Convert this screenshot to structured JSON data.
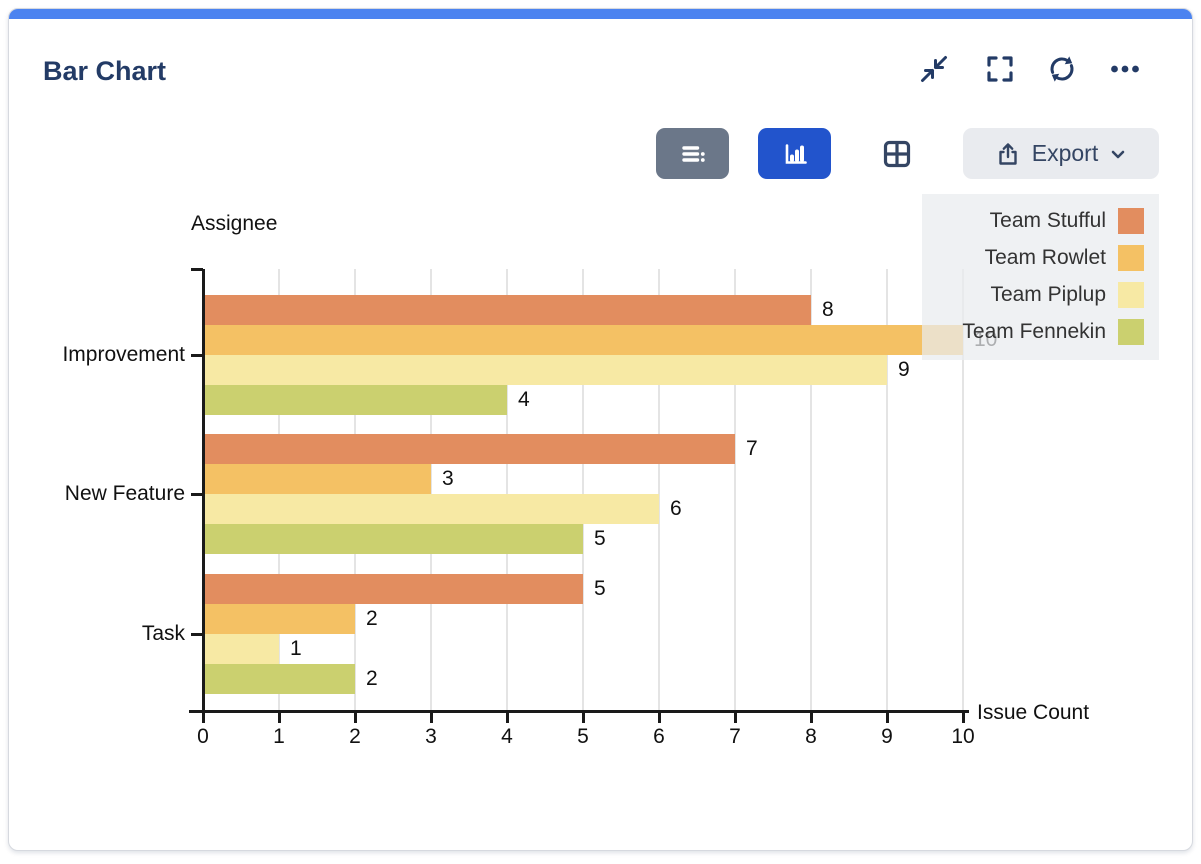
{
  "header": {
    "title": "Bar Chart",
    "icons": [
      "shrink-icon",
      "fullscreen-icon",
      "refresh-icon",
      "ellipsis-icon"
    ]
  },
  "toolbar": {
    "views": [
      {
        "name": "list-view",
        "active": false
      },
      {
        "name": "chart-view",
        "active": true
      },
      {
        "name": "table-view",
        "active": false
      }
    ],
    "export": {
      "label": "Export"
    }
  },
  "colors": {
    "accent_bar": "#4B83F0",
    "active_view_button": "#2254CC",
    "inactive_view_button": "#6B7789",
    "header_text": "#233B66",
    "export_button_bg": "#E9EBEF",
    "legend_background": "rgba(233,235,238,0.72)",
    "gridline": "#E4E4E4"
  },
  "chart_data": {
    "type": "bar",
    "orientation": "horizontal",
    "title": "",
    "xlabel": "Issue Count",
    "ylabel": "Assignee",
    "categories": [
      "Improvement",
      "New Feature",
      "Task"
    ],
    "series": [
      {
        "name": "Team Stufful",
        "color": "#E28D5F",
        "values": [
          8,
          7,
          5
        ]
      },
      {
        "name": "Team Rowlet",
        "color": "#F4C164",
        "values": [
          10,
          3,
          2
        ]
      },
      {
        "name": "Team Piplup",
        "color": "#F7E9A4",
        "values": [
          9,
          6,
          1
        ]
      },
      {
        "name": "Team Fennekin",
        "color": "#CBD06F",
        "values": [
          4,
          5,
          2
        ]
      }
    ],
    "xlim": [
      0,
      10
    ],
    "xticks": [
      0,
      1,
      2,
      3,
      4,
      5,
      6,
      7,
      8,
      9,
      10
    ],
    "value_labels": true,
    "grid": true,
    "legend_position": "top-right"
  }
}
